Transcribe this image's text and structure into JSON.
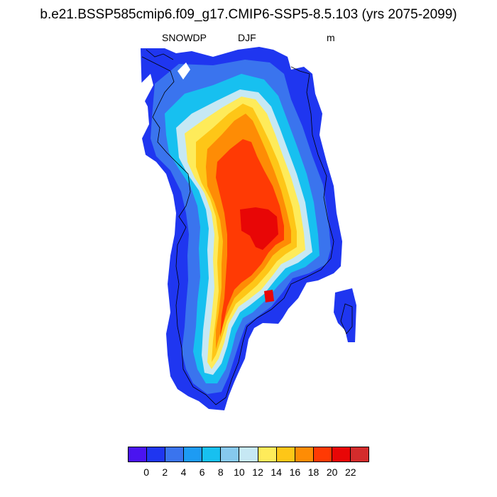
{
  "header": {
    "title": "b.e21.BSSP585cmip6.f09_g17.CMIP6-SSP5-8.5.103 (yrs 2075-2099)",
    "variable": "SNOWDP",
    "season": "DJF",
    "units": "m"
  },
  "colorbar": {
    "colors": [
      "#4a14f0",
      "#1f36f0",
      "#3a74ee",
      "#1d9bf3",
      "#17c0f0",
      "#86c9ee",
      "#c6e8f4",
      "#feeb5a",
      "#fec617",
      "#fe8c05",
      "#ff3a04",
      "#e80606",
      "#d32c2c"
    ],
    "tick_labels": [
      "0",
      "2",
      "4",
      "6",
      "8",
      "10",
      "12",
      "14",
      "16",
      "18",
      "20",
      "22"
    ]
  },
  "map": {
    "region_shape": "Greenland",
    "field": "snow depth, highest at center of ice sheet and decreasing toward coasts"
  }
}
